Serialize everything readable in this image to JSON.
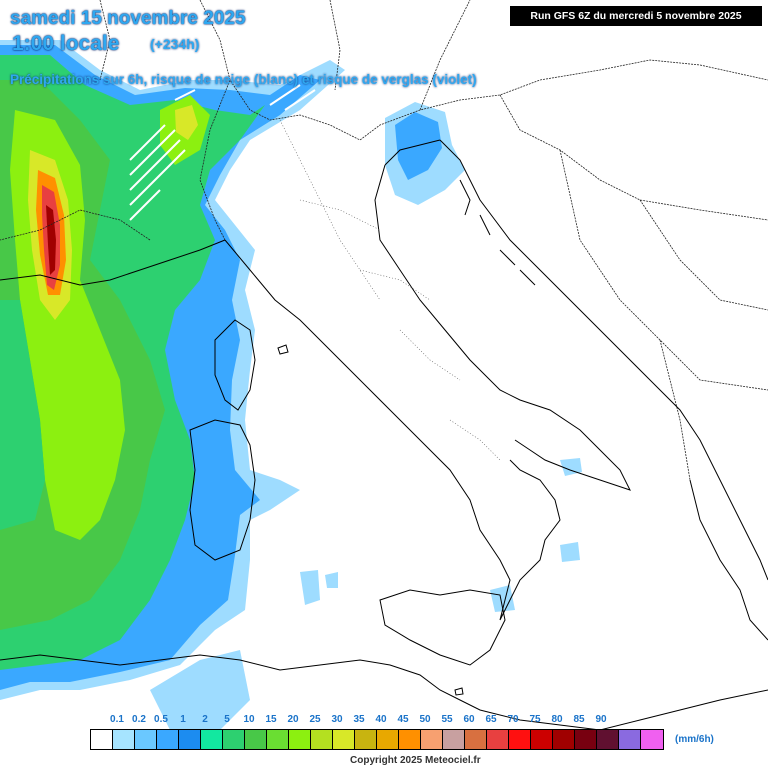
{
  "header": {
    "date": "samedi 15 novembre 2025",
    "time": "1:00 locale",
    "lead": "(+234h)",
    "subtitle": "Précipitations sur 6h, risque de neige (blanc) et risque de verglas (violet)"
  },
  "run_info": "Run GFS 6Z du mercredi 5 novembre 2025",
  "legend": {
    "labels": [
      "0.1",
      "0.2",
      "0.5",
      "1",
      "2",
      "5",
      "10",
      "15",
      "20",
      "25",
      "30",
      "35",
      "40",
      "45",
      "50",
      "55",
      "60",
      "65",
      "70",
      "75",
      "80",
      "85",
      "90"
    ],
    "colors": [
      "#ffffff",
      "#a6e4ff",
      "#6ac8ff",
      "#3aa8ff",
      "#1c8cf0",
      "#12e8a0",
      "#2dd070",
      "#48c848",
      "#6ade32",
      "#8cf010",
      "#b4e020",
      "#d8e828",
      "#c8b410",
      "#e8a800",
      "#ff9000",
      "#f7a070",
      "#c8a0a0",
      "#d87040",
      "#e84040",
      "#ff1010",
      "#cc0000",
      "#a00000",
      "#780010",
      "#601030",
      "#8a6ae0",
      "#f060f0"
    ],
    "unit": "(mm/6h)"
  },
  "copyright": "Copyright 2025 Meteociel.fr",
  "map_colors": {
    "sea": "#ffffff",
    "coast": "#000000",
    "border": "#222222",
    "light_blue": "#9edcff",
    "blue": "#3aa8ff",
    "green": "#2dd070",
    "mid_green": "#48c848",
    "light_green": "#8cf010",
    "yellow": "#d8e828",
    "orange": "#ff9000",
    "red": "#e84040",
    "dark_red": "#a00000"
  }
}
